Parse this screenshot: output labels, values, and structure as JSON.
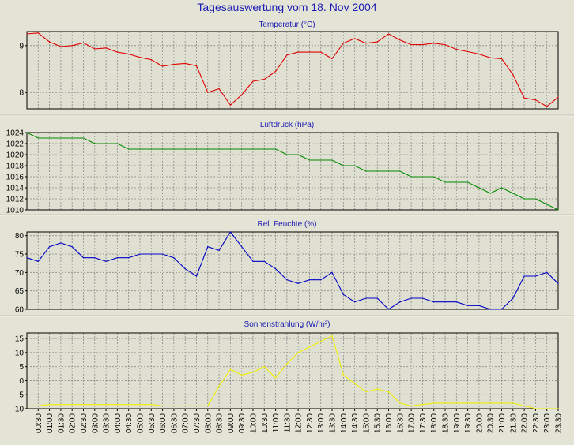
{
  "page_title": "Tagesauswertung vom 18. Nov 2004",
  "chart_data": [
    {
      "type": "line",
      "title": "Temperatur (°C)",
      "color": "#e00000",
      "ylim": [
        7.65,
        9.3
      ],
      "yticks": [
        8,
        9
      ],
      "x": [
        "00:00",
        "00:30",
        "01:00",
        "01:30",
        "02:00",
        "02:30",
        "03:00",
        "03:30",
        "04:00",
        "04:30",
        "05:00",
        "05:30",
        "06:00",
        "06:30",
        "07:00",
        "07:30",
        "08:00",
        "08:30",
        "09:00",
        "09:30",
        "10:00",
        "10:30",
        "11:00",
        "11:30",
        "12:00",
        "12:30",
        "13:00",
        "13:30",
        "14:00",
        "14:30",
        "15:00",
        "15:30",
        "16:00",
        "16:30",
        "17:00",
        "17:30",
        "18:00",
        "18:30",
        "19:00",
        "19:30",
        "20:00",
        "20:30",
        "21:00",
        "21:30",
        "22:00",
        "22:30",
        "23:00",
        "23:30"
      ],
      "values": [
        9.25,
        9.27,
        9.08,
        8.98,
        9.0,
        9.06,
        8.93,
        8.95,
        8.86,
        8.82,
        8.75,
        8.7,
        8.56,
        8.6,
        8.62,
        8.57,
        8.0,
        8.08,
        7.73,
        7.95,
        8.24,
        8.28,
        8.45,
        8.8,
        8.86,
        8.86,
        8.86,
        8.72,
        9.05,
        9.15,
        9.05,
        9.08,
        9.25,
        9.12,
        9.02,
        9.02,
        9.05,
        9.02,
        8.92,
        8.87,
        8.82,
        8.74,
        8.72,
        8.38,
        7.88,
        7.84,
        7.7,
        7.9
      ]
    },
    {
      "type": "line",
      "title": "Luftdruck (hPa)",
      "color": "#008a00",
      "ylim": [
        1010,
        1024
      ],
      "yticks": [
        1010,
        1012,
        1014,
        1016,
        1018,
        1020,
        1022,
        1024
      ],
      "x": [
        "00:00",
        "00:30",
        "01:00",
        "01:30",
        "02:00",
        "02:30",
        "03:00",
        "03:30",
        "04:00",
        "04:30",
        "05:00",
        "05:30",
        "06:00",
        "06:30",
        "07:00",
        "07:30",
        "08:00",
        "08:30",
        "09:00",
        "09:30",
        "10:00",
        "10:30",
        "11:00",
        "11:30",
        "12:00",
        "12:30",
        "13:00",
        "13:30",
        "14:00",
        "14:30",
        "15:00",
        "15:30",
        "16:00",
        "16:30",
        "17:00",
        "17:30",
        "18:00",
        "18:30",
        "19:00",
        "19:30",
        "20:00",
        "20:30",
        "21:00",
        "21:30",
        "22:00",
        "22:30",
        "23:00",
        "23:30"
      ],
      "values": [
        1024,
        1023,
        1023,
        1023,
        1023,
        1023,
        1022,
        1022,
        1022,
        1021,
        1021,
        1021,
        1021,
        1021,
        1021,
        1021,
        1021,
        1021,
        1021,
        1021,
        1021,
        1021,
        1021,
        1020,
        1020,
        1019,
        1019,
        1019,
        1018,
        1018,
        1017,
        1017,
        1017,
        1017,
        1016,
        1016,
        1016,
        1015,
        1015,
        1015,
        1014,
        1013,
        1014,
        1013,
        1012,
        1012,
        1011,
        1010
      ]
    },
    {
      "type": "line",
      "title": "Rel. Feuchte (%)",
      "color": "#0000c8",
      "ylim": [
        60,
        81
      ],
      "yticks": [
        60,
        65,
        70,
        75,
        80
      ],
      "x": [
        "00:00",
        "00:30",
        "01:00",
        "01:30",
        "02:00",
        "02:30",
        "03:00",
        "03:30",
        "04:00",
        "04:30",
        "05:00",
        "05:30",
        "06:00",
        "06:30",
        "07:00",
        "07:30",
        "08:00",
        "08:30",
        "09:00",
        "09:30",
        "10:00",
        "10:30",
        "11:00",
        "11:30",
        "12:00",
        "12:30",
        "13:00",
        "13:30",
        "14:00",
        "14:30",
        "15:00",
        "15:30",
        "16:00",
        "16:30",
        "17:00",
        "17:30",
        "18:00",
        "18:30",
        "19:00",
        "19:30",
        "20:00",
        "20:30",
        "21:00",
        "21:30",
        "22:00",
        "22:30",
        "23:00",
        "23:30"
      ],
      "values": [
        74,
        73,
        77,
        78,
        77,
        74,
        74,
        73,
        74,
        74,
        75,
        75,
        75,
        74,
        71,
        69,
        77,
        76,
        81,
        77,
        73,
        73,
        71,
        68,
        67,
        68,
        68,
        70,
        64,
        62,
        63,
        63,
        60,
        62,
        63,
        63,
        62,
        62,
        62,
        61,
        61,
        60,
        60,
        63,
        69,
        69,
        70,
        67
      ]
    },
    {
      "type": "line",
      "title": "Sonnenstrahlung (W/m²)",
      "color": "#f0f000",
      "ylim": [
        -10,
        17
      ],
      "yticks": [
        -10,
        -5,
        0,
        5,
        10,
        15
      ],
      "x": [
        "00:00",
        "00:30",
        "01:00",
        "01:30",
        "02:00",
        "02:30",
        "03:00",
        "03:30",
        "04:00",
        "04:30",
        "05:00",
        "05:30",
        "06:00",
        "06:30",
        "07:00",
        "07:30",
        "08:00",
        "08:30",
        "09:00",
        "09:30",
        "10:00",
        "10:30",
        "11:00",
        "11:30",
        "12:00",
        "12:30",
        "13:00",
        "13:30",
        "14:00",
        "14:30",
        "15:00",
        "15:30",
        "16:00",
        "16:30",
        "17:00",
        "17:30",
        "18:00",
        "18:30",
        "19:00",
        "19:30",
        "20:00",
        "20:30",
        "21:00",
        "21:30",
        "22:00",
        "22:30",
        "23:00",
        "23:30"
      ],
      "values": [
        -9,
        -9,
        -8.5,
        -8.5,
        -8.5,
        -8.5,
        -8.5,
        -8.5,
        -8.5,
        -8.5,
        -8.5,
        -8.5,
        -9,
        -9,
        -9,
        -9,
        -9,
        -2,
        4,
        2,
        3,
        5,
        1,
        6,
        10,
        12,
        14,
        16,
        2,
        -1,
        -4,
        -3,
        -4,
        -8,
        -9,
        -8.5,
        -8,
        -8,
        -8,
        -8,
        -8,
        -8,
        -8,
        -8,
        -9,
        -10,
        -10,
        -10
      ],
      "bold_zone_end": 19
    }
  ],
  "x_tick_labels": [
    "00:30",
    "01:00",
    "01:30",
    "02:00",
    "02:30",
    "03:00",
    "03:30",
    "04:00",
    "04:30",
    "05:00",
    "05:30",
    "06:00",
    "06:30",
    "07:00",
    "07:30",
    "08:00",
    "08:30",
    "09:00",
    "09:30",
    "10:00",
    "10:30",
    "11:00",
    "11:30",
    "12:00",
    "12:30",
    "13:00",
    "13:30",
    "14:00",
    "14:30",
    "15:00",
    "15:30",
    "16:00",
    "16:30",
    "17:00",
    "17:30",
    "18:00",
    "18:30",
    "19:00",
    "19:30",
    "20:00",
    "20:30",
    "21:00",
    "21:30",
    "22:00",
    "22:30",
    "23:00",
    "23:30"
  ],
  "colors": {
    "background": "#e4e4d6",
    "plot_background": "#e0e0d2",
    "grid": "#8a8a8a",
    "title": "#1a1ab4",
    "separator": "#c4c4b4"
  }
}
